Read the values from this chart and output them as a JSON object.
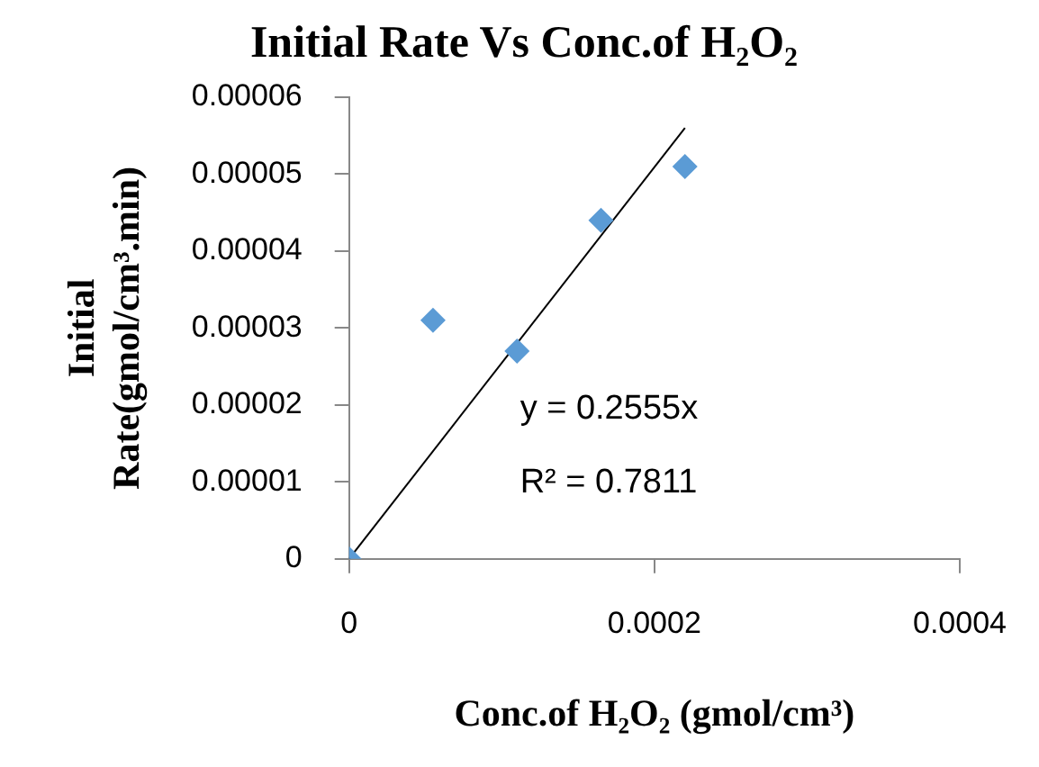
{
  "chart_data": {
    "type": "scatter",
    "title": "Initial Rate Vs Conc.of H₂O₂",
    "xlabel": "Conc.of H₂O₂ (gmol/cm³)",
    "ylabel": "Initial Rate(gmol/cm³.min)",
    "x": [
      0,
      5.5e-05,
      0.00011,
      0.000165,
      0.00022
    ],
    "series": [
      {
        "type": "scatter",
        "color": "#5b9bd5",
        "marker": "diamond",
        "values": [
          0,
          3.1e-05,
          2.7e-05,
          4.4e-05,
          5.1e-05
        ]
      },
      {
        "type": "line",
        "color": "#000000",
        "marker": "none",
        "x": [
          0,
          0.00022
        ],
        "values": [
          0,
          5.6e-05
        ]
      }
    ],
    "xlim": [
      0,
      0.0004
    ],
    "xticks": [
      0,
      0.0002,
      0.0004
    ],
    "ylim": [
      0,
      6e-05
    ],
    "yticks": [
      0,
      {
        "value": 1e-05,
        "label": "0.00001"
      },
      {
        "value": 2e-05,
        "label": "0.00002"
      },
      {
        "value": 3e-05,
        "label": "0.00003"
      },
      {
        "value": 4e-05,
        "label": "0.00004"
      },
      {
        "value": 5e-05,
        "label": "0.00005"
      },
      {
        "value": 6e-05,
        "label": "0.00006"
      }
    ],
    "annotations": [
      "y = 0.2555x",
      "R² = 0.7811"
    ],
    "grid": false,
    "legend": false
  }
}
